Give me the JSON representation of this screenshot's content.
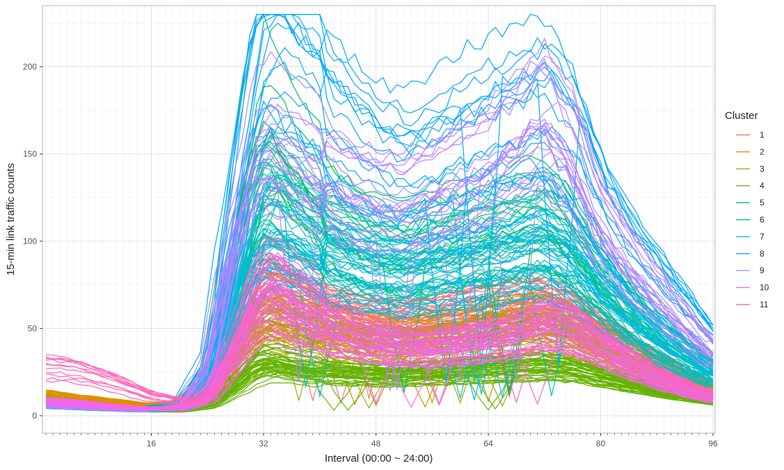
{
  "chart_data": {
    "type": "line",
    "xlabel": "Interval (00:00 ~ 24:00)",
    "ylabel": "15-min link traffic counts",
    "xlim": [
      1,
      96
    ],
    "ylim": [
      0,
      230
    ],
    "x_ticks": [
      16,
      32,
      48,
      64,
      80,
      96
    ],
    "y_ticks": [
      0,
      50,
      100,
      150,
      200
    ],
    "grid": true,
    "minor_x_grid_step": 1,
    "legend": {
      "title": "Cluster",
      "placement": "right",
      "entries": [
        "1",
        "2",
        "3",
        "4",
        "5",
        "6",
        "7",
        "8",
        "9",
        "10",
        "11"
      ]
    },
    "series": [
      {
        "name": "1",
        "color": "#F8766D",
        "lines": 40,
        "profile": [
          [
            1,
            10
          ],
          [
            5,
            8
          ],
          [
            10,
            6
          ],
          [
            15,
            5
          ],
          [
            20,
            7
          ],
          [
            24,
            16
          ],
          [
            28,
            45
          ],
          [
            31,
            68
          ],
          [
            33,
            72
          ],
          [
            36,
            66
          ],
          [
            40,
            60
          ],
          [
            44,
            57
          ],
          [
            48,
            54
          ],
          [
            52,
            52
          ],
          [
            56,
            54
          ],
          [
            60,
            57
          ],
          [
            64,
            60
          ],
          [
            68,
            62
          ],
          [
            72,
            63
          ],
          [
            76,
            58
          ],
          [
            80,
            48
          ],
          [
            84,
            38
          ],
          [
            88,
            30
          ],
          [
            92,
            22
          ],
          [
            96,
            16
          ]
        ]
      },
      {
        "name": "2",
        "color": "#DB8E00",
        "lines": 30,
        "profile": [
          [
            1,
            12
          ],
          [
            5,
            10
          ],
          [
            10,
            8
          ],
          [
            15,
            6
          ],
          [
            20,
            6
          ],
          [
            24,
            12
          ],
          [
            28,
            38
          ],
          [
            31,
            58
          ],
          [
            33,
            62
          ],
          [
            36,
            58
          ],
          [
            40,
            54
          ],
          [
            44,
            50
          ],
          [
            48,
            47
          ],
          [
            52,
            45
          ],
          [
            56,
            48
          ],
          [
            60,
            51
          ],
          [
            64,
            55
          ],
          [
            68,
            57
          ],
          [
            72,
            58
          ],
          [
            76,
            53
          ],
          [
            80,
            43
          ],
          [
            84,
            34
          ],
          [
            88,
            27
          ],
          [
            92,
            20
          ],
          [
            96,
            14
          ]
        ]
      },
      {
        "name": "3",
        "color": "#AEA200",
        "lines": 30,
        "profile": [
          [
            1,
            9
          ],
          [
            5,
            7
          ],
          [
            10,
            5
          ],
          [
            15,
            4
          ],
          [
            20,
            5
          ],
          [
            24,
            10
          ],
          [
            28,
            32
          ],
          [
            31,
            48
          ],
          [
            33,
            52
          ],
          [
            36,
            48
          ],
          [
            40,
            46
          ],
          [
            44,
            43
          ],
          [
            48,
            41
          ],
          [
            52,
            40
          ],
          [
            56,
            42
          ],
          [
            60,
            44
          ],
          [
            64,
            46
          ],
          [
            68,
            48
          ],
          [
            72,
            50
          ],
          [
            76,
            45
          ],
          [
            80,
            37
          ],
          [
            84,
            29
          ],
          [
            88,
            23
          ],
          [
            92,
            17
          ],
          [
            96,
            12
          ]
        ]
      },
      {
        "name": "4",
        "color": "#64B200",
        "lines": 40,
        "profile": [
          [
            1,
            6
          ],
          [
            5,
            5
          ],
          [
            10,
            4
          ],
          [
            15,
            3
          ],
          [
            20,
            3
          ],
          [
            24,
            6
          ],
          [
            28,
            18
          ],
          [
            31,
            28
          ],
          [
            33,
            30
          ],
          [
            36,
            27
          ],
          [
            40,
            25
          ],
          [
            44,
            24
          ],
          [
            48,
            23
          ],
          [
            52,
            23
          ],
          [
            56,
            24
          ],
          [
            60,
            25
          ],
          [
            64,
            26
          ],
          [
            68,
            27
          ],
          [
            72,
            28
          ],
          [
            76,
            26
          ],
          [
            80,
            22
          ],
          [
            84,
            18
          ],
          [
            88,
            14
          ],
          [
            92,
            11
          ],
          [
            96,
            8
          ]
        ]
      },
      {
        "name": "5",
        "color": "#00BD5C",
        "lines": 12,
        "profile": [
          [
            1,
            8
          ],
          [
            5,
            6
          ],
          [
            10,
            5
          ],
          [
            15,
            4
          ],
          [
            20,
            5
          ],
          [
            24,
            20
          ],
          [
            28,
            90
          ],
          [
            31,
            150
          ],
          [
            33,
            160
          ],
          [
            36,
            140
          ],
          [
            40,
            120
          ],
          [
            44,
            108
          ],
          [
            48,
            100
          ],
          [
            52,
            96
          ],
          [
            56,
            100
          ],
          [
            60,
            104
          ],
          [
            64,
            108
          ],
          [
            68,
            112
          ],
          [
            72,
            116
          ],
          [
            76,
            104
          ],
          [
            80,
            80
          ],
          [
            84,
            62
          ],
          [
            88,
            48
          ],
          [
            92,
            36
          ],
          [
            96,
            26
          ]
        ]
      },
      {
        "name": "6",
        "color": "#00C1A7",
        "lines": 30,
        "profile": [
          [
            1,
            7
          ],
          [
            5,
            5
          ],
          [
            10,
            4
          ],
          [
            15,
            3
          ],
          [
            20,
            4
          ],
          [
            24,
            16
          ],
          [
            28,
            70
          ],
          [
            31,
            120
          ],
          [
            33,
            130
          ],
          [
            36,
            120
          ],
          [
            40,
            108
          ],
          [
            44,
            100
          ],
          [
            48,
            94
          ],
          [
            52,
            90
          ],
          [
            56,
            96
          ],
          [
            60,
            100
          ],
          [
            64,
            104
          ],
          [
            68,
            106
          ],
          [
            72,
            110
          ],
          [
            76,
            98
          ],
          [
            80,
            76
          ],
          [
            84,
            60
          ],
          [
            88,
            46
          ],
          [
            92,
            35
          ],
          [
            96,
            25
          ]
        ]
      },
      {
        "name": "7",
        "color": "#00BADE",
        "lines": 30,
        "profile": [
          [
            1,
            6
          ],
          [
            5,
            5
          ],
          [
            10,
            4
          ],
          [
            15,
            3
          ],
          [
            20,
            4
          ],
          [
            24,
            14
          ],
          [
            28,
            58
          ],
          [
            31,
            95
          ],
          [
            33,
            102
          ],
          [
            36,
            98
          ],
          [
            40,
            90
          ],
          [
            44,
            84
          ],
          [
            48,
            80
          ],
          [
            52,
            78
          ],
          [
            56,
            80
          ],
          [
            60,
            82
          ],
          [
            64,
            85
          ],
          [
            68,
            88
          ],
          [
            72,
            92
          ],
          [
            76,
            84
          ],
          [
            80,
            68
          ],
          [
            84,
            54
          ],
          [
            88,
            42
          ],
          [
            92,
            32
          ],
          [
            96,
            23
          ]
        ]
      },
      {
        "name": "8",
        "color": "#00A6FF",
        "lines": 16,
        "profile": [
          [
            1,
            7
          ],
          [
            5,
            5
          ],
          [
            10,
            4
          ],
          [
            15,
            4
          ],
          [
            20,
            6
          ],
          [
            24,
            30
          ],
          [
            28,
            130
          ],
          [
            31,
            195
          ],
          [
            33,
            212
          ],
          [
            36,
            200
          ],
          [
            40,
            185
          ],
          [
            44,
            168
          ],
          [
            48,
            155
          ],
          [
            52,
            148
          ],
          [
            56,
            155
          ],
          [
            60,
            165
          ],
          [
            64,
            172
          ],
          [
            68,
            178
          ],
          [
            72,
            183
          ],
          [
            76,
            165
          ],
          [
            80,
            125
          ],
          [
            84,
            100
          ],
          [
            88,
            80
          ],
          [
            92,
            62
          ],
          [
            96,
            42
          ]
        ]
      },
      {
        "name": "9",
        "color": "#B385FF",
        "lines": 20,
        "profile": [
          [
            1,
            6
          ],
          [
            5,
            5
          ],
          [
            10,
            4
          ],
          [
            15,
            3
          ],
          [
            20,
            5
          ],
          [
            24,
            24
          ],
          [
            28,
            105
          ],
          [
            31,
            148
          ],
          [
            33,
            155
          ],
          [
            36,
            148
          ],
          [
            40,
            138
          ],
          [
            44,
            128
          ],
          [
            48,
            122
          ],
          [
            52,
            120
          ],
          [
            56,
            126
          ],
          [
            60,
            134
          ],
          [
            64,
            142
          ],
          [
            68,
            155
          ],
          [
            72,
            172
          ],
          [
            76,
            150
          ],
          [
            80,
            110
          ],
          [
            84,
            88
          ],
          [
            88,
            70
          ],
          [
            92,
            52
          ],
          [
            96,
            36
          ]
        ]
      },
      {
        "name": "10",
        "color": "#EF67EB",
        "lines": 35,
        "profile": [
          [
            1,
            8
          ],
          [
            5,
            7
          ],
          [
            10,
            5
          ],
          [
            15,
            4
          ],
          [
            20,
            4
          ],
          [
            24,
            10
          ],
          [
            28,
            38
          ],
          [
            31,
            62
          ],
          [
            33,
            68
          ],
          [
            36,
            60
          ],
          [
            40,
            50
          ],
          [
            44,
            44
          ],
          [
            48,
            40
          ],
          [
            52,
            38
          ],
          [
            56,
            38
          ],
          [
            60,
            40
          ],
          [
            64,
            42
          ],
          [
            68,
            46
          ],
          [
            72,
            52
          ],
          [
            76,
            48
          ],
          [
            80,
            38
          ],
          [
            84,
            29
          ],
          [
            88,
            21
          ],
          [
            92,
            15
          ],
          [
            96,
            10
          ]
        ]
      },
      {
        "name": "11",
        "color": "#FF63B6",
        "lines": 12,
        "profile": [
          [
            1,
            28
          ],
          [
            5,
            26
          ],
          [
            10,
            20
          ],
          [
            15,
            12
          ],
          [
            20,
            8
          ],
          [
            24,
            12
          ],
          [
            28,
            40
          ],
          [
            31,
            72
          ],
          [
            33,
            80
          ],
          [
            36,
            70
          ],
          [
            40,
            58
          ],
          [
            44,
            50
          ],
          [
            48,
            45
          ],
          [
            52,
            42
          ],
          [
            56,
            42
          ],
          [
            60,
            44
          ],
          [
            64,
            46
          ],
          [
            68,
            50
          ],
          [
            72,
            56
          ],
          [
            76,
            52
          ],
          [
            80,
            40
          ],
          [
            84,
            30
          ],
          [
            88,
            22
          ],
          [
            92,
            16
          ],
          [
            96,
            11
          ]
        ]
      }
    ]
  }
}
